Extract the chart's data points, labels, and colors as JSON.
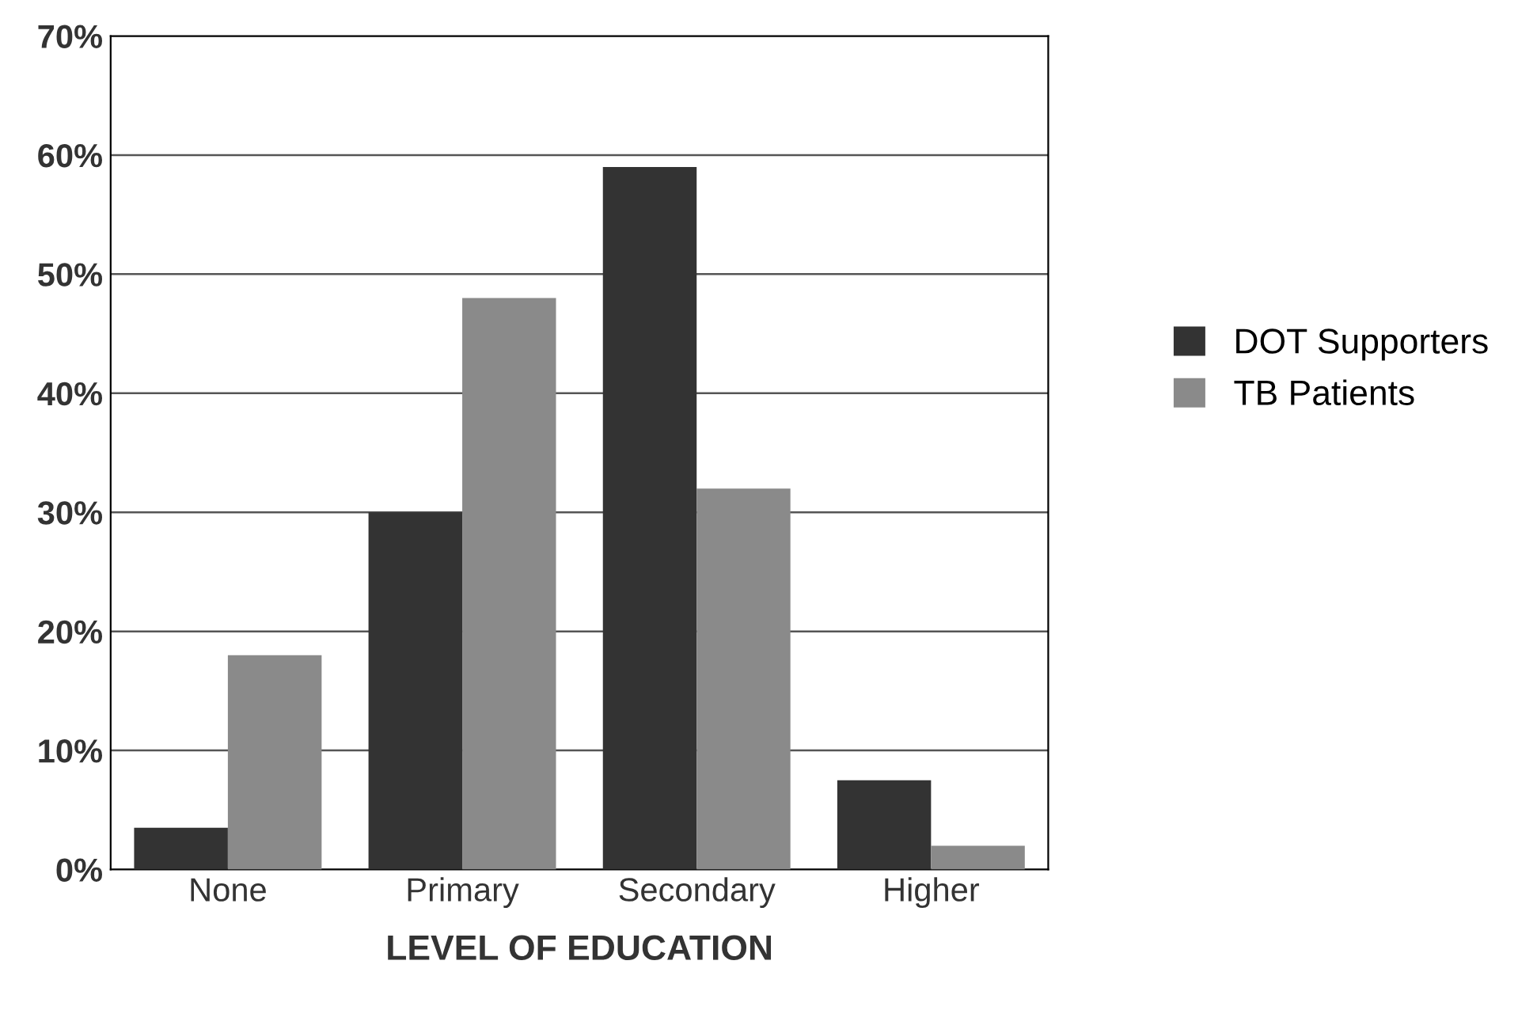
{
  "chart_data": {
    "type": "bar",
    "xlabel": "LEVEL OF EDUCATION",
    "categories": [
      "None",
      "Primary",
      "Secondary",
      "Higher"
    ],
    "series": [
      {
        "name": "DOT Supporters",
        "color": "#333333",
        "values": [
          3.5,
          30,
          59,
          7.5
        ]
      },
      {
        "name": "TB Patients",
        "color": "#8a8a8a",
        "values": [
          18,
          48,
          32,
          2
        ]
      }
    ],
    "ylim": [
      0,
      70
    ],
    "yticks": [
      {
        "value": 0,
        "label": "0%"
      },
      {
        "value": 10,
        "label": "10%"
      },
      {
        "value": 20,
        "label": "20%"
      },
      {
        "value": 30,
        "label": "30%"
      },
      {
        "value": 40,
        "label": "40%"
      },
      {
        "value": 50,
        "label": "50%"
      },
      {
        "value": 60,
        "label": "60%"
      },
      {
        "value": 70,
        "label": "70%"
      }
    ],
    "grid": "y",
    "legend": "right"
  }
}
